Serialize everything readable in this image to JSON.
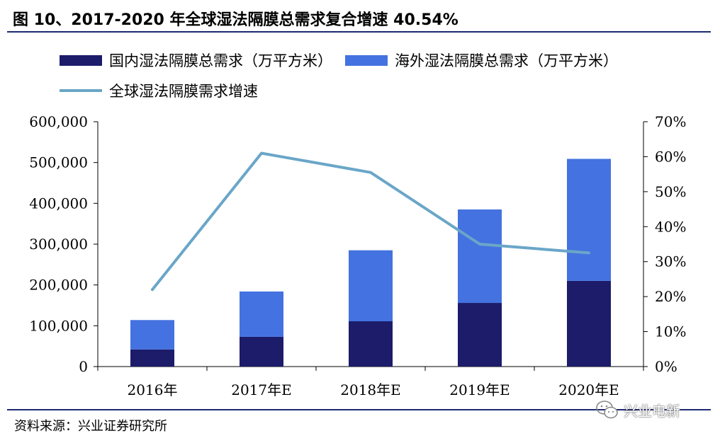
{
  "title": "图 10、2017-2020 年全球湿法隔膜总需求复合增速 40.54%",
  "source": "资料来源：兴业证券研究所",
  "watermark": "兴业电新",
  "colors": {
    "domestic": "#1c1c6b",
    "overseas": "#4472e0",
    "growth": "#6aa6c8",
    "rule": "#1d2a6e"
  },
  "chart_data": {
    "type": "bar",
    "stacked": true,
    "categories": [
      "2016年",
      "2017年E",
      "2018年E",
      "2019年E",
      "2020年E"
    ],
    "series": [
      {
        "name": "国内湿法隔膜总需求（万平方米）",
        "type": "bar",
        "axis": "left",
        "color": "#1c1c6b",
        "values": [
          42000,
          73000,
          111000,
          156000,
          210000
        ]
      },
      {
        "name": "海外湿法隔膜总需求（万平方米）",
        "type": "bar",
        "axis": "left",
        "color": "#4472e0",
        "values": [
          72000,
          111000,
          174000,
          229000,
          299000
        ]
      },
      {
        "name": "全球湿法隔膜需求增速",
        "type": "line",
        "axis": "right",
        "color": "#6aa6c8",
        "values": [
          0.22,
          0.61,
          0.555,
          0.35,
          0.325
        ]
      }
    ],
    "y_left": {
      "min": 0,
      "max": 600000,
      "ticks": [
        "0",
        "100,000",
        "200,000",
        "300,000",
        "400,000",
        "500,000",
        "600,000"
      ]
    },
    "y_right": {
      "min": 0,
      "max": 0.7,
      "ticks": [
        "0%",
        "10%",
        "20%",
        "30%",
        "40%",
        "50%",
        "60%",
        "70%"
      ]
    },
    "legend": "top",
    "grid": false
  }
}
